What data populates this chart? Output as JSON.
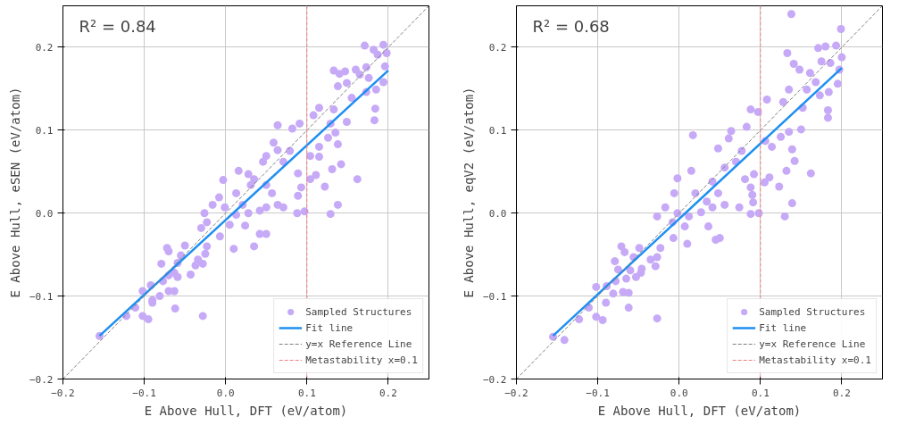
{
  "chart_data": [
    {
      "type": "scatter",
      "xlabel": "E Above Hull, DFT (eV/atom)",
      "ylabel": "E Above Hull, eSEN (eV/atom)",
      "annotations": [
        "R² = 0.84"
      ],
      "xlim": [
        -0.2,
        0.25
      ],
      "ylim": [
        -0.2,
        0.25
      ],
      "xticks": [
        {
          "value": -0.2,
          "label": "−0.2"
        },
        {
          "value": -0.1,
          "label": "−0.1"
        },
        {
          "value": 0,
          "label": "0.0"
        },
        {
          "value": 0.1,
          "label": "0.1"
        },
        {
          "value": 0.2,
          "label": "0.2"
        }
      ],
      "yticks": [
        {
          "value": -0.2,
          "label": "−0.2"
        },
        {
          "value": -0.1,
          "label": "−0.1"
        },
        {
          "value": 0,
          "label": "0.0"
        },
        {
          "value": 0.1,
          "label": "0.1"
        },
        {
          "value": 0.2,
          "label": "0.2"
        }
      ],
      "grid": true,
      "legend": "bottom right",
      "series": [
        {
          "name": "Sampled Structures",
          "marker": "circle",
          "color": "#c6a9f7",
          "x": [
            0.171,
            0.194,
            0.198,
            0.182,
            0.187,
            0.133,
            0.14,
            0.147,
            0.16,
            0.173,
            0.165,
            0.176,
            0.194,
            0.196,
            0.138,
            0.149,
            0.185,
            0.173,
            0.155,
            0.184,
            0.183,
            0.149,
            0.129,
            0.133,
            0.115,
            0.108,
            0.064,
            0.082,
            0.091,
            0.135,
            0.138,
            0.115,
            0.126,
            0.115,
            0.104,
            0.142,
            0.131,
            0.162,
            0.122,
            0.104,
            0.111,
            0.089,
            0.093,
            0.089,
            0.138,
            0.129,
            0.097,
            0.088,
            0.059,
            0.05,
            0.064,
            0.046,
            -0.003,
            0.016,
            0.028,
            0.035,
            0.05,
            0.057,
            0.064,
            0.042,
            0.028,
            0.013,
            -0.001,
            -0.016,
            -0.026,
            -0.008,
            -0.023,
            -0.03,
            0.005,
            0.024,
            0.042,
            0.05,
            0.035,
            0.01,
            -0.007,
            -0.023,
            -0.025,
            -0.034,
            -0.028,
            -0.037,
            -0.043,
            -0.05,
            -0.07,
            -0.072,
            -0.079,
            -0.055,
            -0.059,
            -0.063,
            -0.059,
            -0.07,
            -0.077,
            -0.092,
            -0.102,
            -0.09,
            -0.09,
            -0.081,
            -0.07,
            -0.063,
            -0.062,
            -0.028,
            -0.095,
            -0.102,
            -0.111,
            -0.122,
            -0.155,
            0.013,
            0.031,
            0.071,
            0.079,
            0.05,
            0.071,
            0.021
          ],
          "values": [
            0.202,
            0.203,
            0.193,
            0.197,
            0.191,
            0.172,
            0.168,
            0.171,
            0.173,
            0.176,
            0.167,
            0.163,
            0.158,
            0.177,
            0.153,
            0.157,
            0.149,
            0.146,
            0.139,
            0.126,
            0.112,
            0.11,
            0.108,
            0.125,
            0.127,
            0.118,
            0.106,
            0.102,
            0.108,
            0.097,
            0.083,
            0.08,
            0.091,
            0.068,
            0.069,
            0.059,
            0.053,
            0.041,
            0.032,
            0.041,
            0.046,
            0.048,
            0.031,
            0.021,
            0.01,
            -0.001,
            0.002,
            0.0,
            0.085,
            0.069,
            0.076,
            0.062,
            0.04,
            0.051,
            0.047,
            0.041,
            0.034,
            0.024,
            0.01,
            0.003,
            0.0,
            -0.002,
            0.007,
            0.01,
            0.0,
            0.019,
            -0.011,
            -0.018,
            -0.014,
            -0.015,
            -0.025,
            -0.025,
            -0.04,
            -0.043,
            -0.028,
            -0.04,
            -0.049,
            -0.056,
            -0.061,
            -0.063,
            -0.074,
            -0.039,
            -0.046,
            -0.042,
            -0.061,
            -0.051,
            -0.06,
            -0.072,
            -0.077,
            -0.075,
            -0.082,
            -0.087,
            -0.094,
            -0.105,
            -0.108,
            -0.1,
            -0.094,
            -0.094,
            -0.115,
            -0.124,
            -0.128,
            -0.124,
            -0.114,
            -0.124,
            -0.148,
            0.024,
            0.034,
            0.062,
            0.075,
            0.007,
            0.007,
            0.01
          ]
        },
        {
          "name": "Fit line",
          "type": "line",
          "color": "#1e8ff0",
          "line_style": "solid",
          "x": [
            -0.155,
            0.2
          ],
          "values": [
            -0.148,
            0.172
          ]
        },
        {
          "name": "y=x Reference Line",
          "type": "line",
          "color": "#808080",
          "line_style": "dashed",
          "x": [
            -0.2,
            0.25
          ],
          "values": [
            -0.2,
            0.25
          ]
        }
      ],
      "ref_lines": [
        {
          "axis": "x",
          "value": 0.1,
          "label": "Metastability x=0.1",
          "color": "#f08080",
          "line_style": "dashed"
        }
      ]
    },
    {
      "type": "scatter",
      "xlabel": "E Above Hull, DFT (eV/atom)",
      "ylabel": "E Above Hull, eqV2 (eV/atom)",
      "annotations": [
        "R² = 0.68"
      ],
      "xlim": [
        -0.2,
        0.25
      ],
      "ylim": [
        -0.2,
        0.25
      ],
      "xticks": [
        {
          "value": -0.2,
          "label": "−0.2"
        },
        {
          "value": -0.1,
          "label": "−0.1"
        },
        {
          "value": 0,
          "label": "0.0"
        },
        {
          "value": 0.1,
          "label": "0.1"
        },
        {
          "value": 0.2,
          "label": "0.2"
        }
      ],
      "yticks": [
        {
          "value": -0.2,
          "label": "−0.2"
        },
        {
          "value": -0.1,
          "label": "−0.1"
        },
        {
          "value": 0,
          "label": "0.0"
        },
        {
          "value": 0.1,
          "label": "0.1"
        },
        {
          "value": 0.2,
          "label": "0.2"
        }
      ],
      "grid": true,
      "legend": "bottom right",
      "series": [
        {
          "name": "Sampled Structures",
          "marker": "circle",
          "color": "#c6a9f7",
          "x": [
            0.138,
            0.199,
            0.133,
            0.171,
            0.18,
            0.193,
            0.2,
            0.197,
            0.141,
            0.148,
            0.161,
            0.175,
            0.186,
            0.168,
            0.157,
            0.135,
            0.128,
            0.108,
            0.088,
            0.097,
            0.152,
            0.173,
            0.184,
            0.195,
            0.183,
            0.183,
            0.15,
            0.135,
            0.125,
            0.114,
            0.106,
            0.083,
            0.064,
            0.061,
            0.048,
            0.017,
            0.015,
            -0.002,
            -0.006,
            0.139,
            0.142,
            0.132,
            0.162,
            0.123,
            0.111,
            0.105,
            0.092,
            0.081,
            0.088,
            0.09,
            0.091,
            0.139,
            0.13,
            0.098,
            0.088,
            0.074,
            0.056,
            0.041,
            0.027,
            0.012,
            -0.002,
            -0.017,
            -0.027,
            -0.008,
            0.007,
            0.036,
            0.045,
            0.05,
            -0.007,
            0.01,
            -0.023,
            -0.027,
            -0.029,
            -0.035,
            -0.046,
            -0.049,
            -0.067,
            -0.071,
            -0.079,
            -0.056,
            -0.06,
            -0.075,
            -0.047,
            -0.053,
            -0.065,
            -0.078,
            -0.089,
            -0.102,
            -0.09,
            -0.081,
            -0.069,
            -0.062,
            -0.062,
            -0.027,
            -0.102,
            -0.094,
            -0.111,
            -0.123,
            -0.155,
            -0.141,
            0.02,
            0.041,
            0.056,
            0.07,
            0.077,
            0.034,
            0.048
          ],
          "values": [
            0.24,
            0.222,
            0.193,
            0.199,
            0.201,
            0.202,
            0.188,
            0.173,
            0.18,
            0.173,
            0.169,
            0.183,
            0.181,
            0.158,
            0.149,
            0.149,
            0.134,
            0.137,
            0.125,
            0.122,
            0.127,
            0.142,
            0.146,
            0.156,
            0.124,
            0.115,
            0.101,
            0.098,
            0.092,
            0.08,
            0.087,
            0.104,
            0.099,
            0.09,
            0.078,
            0.094,
            0.051,
            0.042,
            0.024,
            0.077,
            0.063,
            0.051,
            0.048,
            0.032,
            0.043,
            0.037,
            0.047,
            0.041,
            0.031,
            0.022,
            0.013,
            0.012,
            -0.004,
            0.0,
            -0.001,
            0.007,
            0.01,
            0.007,
            0.001,
            -0.004,
            0.0,
            0.007,
            -0.004,
            -0.011,
            -0.016,
            -0.016,
            -0.032,
            -0.03,
            -0.03,
            -0.037,
            -0.042,
            -0.053,
            -0.064,
            -0.056,
            -0.067,
            -0.042,
            -0.047,
            -0.04,
            -0.058,
            -0.053,
            -0.069,
            -0.068,
            -0.072,
            -0.077,
            -0.079,
            -0.082,
            -0.088,
            -0.089,
            -0.108,
            -0.097,
            -0.095,
            -0.096,
            -0.114,
            -0.127,
            -0.125,
            -0.129,
            -0.114,
            -0.128,
            -0.149,
            -0.153,
            0.024,
            0.038,
            0.055,
            0.062,
            0.075,
            0.014,
            0.024
          ]
        },
        {
          "name": "Fit line",
          "type": "line",
          "color": "#1e8ff0",
          "line_style": "solid",
          "x": [
            -0.155,
            0.2
          ],
          "values": [
            -0.148,
            0.175
          ]
        },
        {
          "name": "y=x Reference Line",
          "type": "line",
          "color": "#808080",
          "line_style": "dashed",
          "x": [
            -0.2,
            0.25
          ],
          "values": [
            -0.2,
            0.25
          ]
        }
      ],
      "ref_lines": [
        {
          "axis": "x",
          "value": 0.1,
          "label": "Metastability x=0.1",
          "color": "#f08080",
          "line_style": "dashed"
        }
      ]
    }
  ]
}
